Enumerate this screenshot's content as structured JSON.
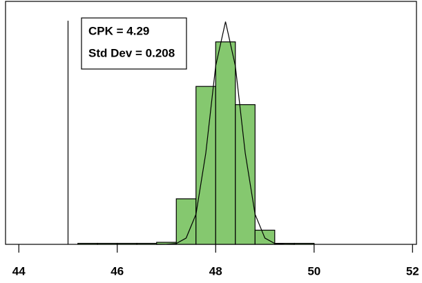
{
  "chart_data": {
    "type": "histogram",
    "annotations": [
      "CPK = 4.29",
      "Std Dev = 0.208"
    ],
    "bins": [
      45.2,
      45.6,
      46.0,
      46.4,
      46.8,
      47.2,
      47.6,
      48.0,
      48.4,
      48.8,
      49.2,
      49.6,
      50.0
    ],
    "values": [
      0.5,
      0.5,
      0.5,
      0.5,
      1,
      22.5,
      78,
      100,
      69,
      7,
      0.5,
      0.5
    ],
    "color": "#85c86f",
    "curve": {
      "x": [
        46.8,
        47.0,
        47.2,
        47.4,
        47.6,
        47.8,
        48.0,
        48.2,
        48.4,
        48.6,
        48.8,
        49.0,
        49.2,
        49.4,
        49.6
      ],
      "values": [
        0,
        0.04,
        0.4,
        3.1,
        14.9,
        45.2,
        88.1,
        110,
        88.1,
        45.2,
        14.9,
        3.1,
        0.4,
        0.04,
        0
      ]
    },
    "vline": 45,
    "xlim": [
      43.73,
      52.08
    ],
    "xticks": [
      44,
      46,
      48,
      50,
      52
    ],
    "ylim": [
      0,
      120
    ]
  }
}
